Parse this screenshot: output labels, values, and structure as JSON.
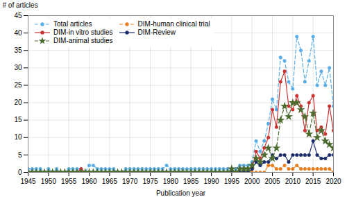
{
  "chart_data": {
    "type": "line",
    "xlabel": "Publication year",
    "ylabel": "# of articles",
    "x": [
      1945,
      1946,
      1947,
      1948,
      1949,
      1950,
      1951,
      1952,
      1953,
      1954,
      1955,
      1956,
      1957,
      1958,
      1959,
      1960,
      1961,
      1962,
      1963,
      1964,
      1965,
      1966,
      1967,
      1968,
      1969,
      1970,
      1971,
      1972,
      1973,
      1974,
      1975,
      1976,
      1977,
      1978,
      1979,
      1980,
      1981,
      1982,
      1983,
      1984,
      1985,
      1986,
      1987,
      1988,
      1989,
      1990,
      1991,
      1992,
      1993,
      1994,
      1995,
      1996,
      1997,
      1998,
      1999,
      2000,
      2001,
      2002,
      2003,
      2004,
      2005,
      2006,
      2007,
      2008,
      2009,
      2010,
      2011,
      2012,
      2013,
      2014,
      2015,
      2016,
      2017,
      2018,
      2019,
      2020
    ],
    "series": [
      {
        "name": "Total articles",
        "color": "#5BAEE8",
        "line_style": "dashed",
        "marker": "circle",
        "values": [
          1,
          1,
          1,
          1,
          0,
          1,
          0,
          1,
          0,
          0,
          1,
          1,
          1,
          1,
          0,
          2,
          2,
          1,
          1,
          1,
          1,
          1,
          0,
          0,
          1,
          1,
          1,
          1,
          1,
          1,
          1,
          1,
          1,
          1,
          2,
          1,
          1,
          1,
          1,
          1,
          1,
          1,
          1,
          1,
          1,
          1,
          1,
          1,
          1,
          1,
          1,
          1,
          2,
          2,
          2,
          3,
          9,
          6,
          9,
          14,
          21,
          18,
          33,
          32,
          26,
          24,
          39,
          35,
          26,
          32,
          39,
          25,
          29,
          25,
          30,
          19
        ]
      },
      {
        "name": "DIM-human clinical trial",
        "color": "#E88020",
        "line_style": "dashed",
        "marker": "circle",
        "values": [
          0,
          0,
          0,
          0,
          0,
          0,
          0,
          0,
          0,
          0,
          0,
          0,
          0,
          0,
          0,
          0,
          0,
          0,
          0,
          0,
          0,
          0,
          0,
          0,
          0,
          0,
          0,
          0,
          0,
          0,
          0,
          0,
          0,
          0,
          0,
          0,
          0,
          0,
          0,
          0,
          0,
          0,
          0,
          0,
          0,
          0,
          0,
          0,
          0,
          0,
          0,
          0,
          0,
          0,
          0,
          0,
          0,
          0,
          0,
          2,
          2,
          1,
          1,
          2,
          1,
          1,
          2,
          1,
          1,
          1,
          1,
          1,
          1,
          1,
          1,
          0
        ]
      },
      {
        "name": "DIM-in vitro studies",
        "color": "#CC3333",
        "line_style": "solid",
        "marker": "circle",
        "values": [
          0,
          0,
          0,
          0,
          0,
          0,
          0,
          0,
          0,
          0,
          0,
          0,
          0,
          1,
          0,
          0,
          0,
          0,
          0,
          0,
          0,
          0,
          0,
          0,
          0,
          0,
          0,
          0,
          0,
          0,
          0,
          0,
          0,
          0,
          0,
          0,
          0,
          0,
          0,
          0,
          0,
          0,
          0,
          0,
          0,
          0,
          0,
          0,
          0,
          0,
          0,
          0,
          1,
          1,
          1,
          1,
          6,
          4,
          7,
          10,
          18,
          13,
          26,
          29,
          19,
          18,
          22,
          19,
          12,
          20,
          22,
          12,
          13,
          11,
          19,
          12
        ]
      },
      {
        "name": "DIM-Review",
        "color": "#1B2D6B",
        "line_style": "solid",
        "marker": "circle",
        "values": [
          0,
          0,
          0,
          0,
          0,
          0,
          0,
          0,
          0,
          0,
          0,
          0,
          0,
          0,
          0,
          0,
          0,
          0,
          0,
          0,
          0,
          0,
          0,
          0,
          0,
          0,
          0,
          0,
          0,
          0,
          0,
          0,
          0,
          0,
          0,
          0,
          0,
          0,
          0,
          0,
          0,
          0,
          0,
          0,
          0,
          0,
          0,
          0,
          0,
          0,
          0,
          0,
          0,
          0,
          0,
          1,
          3,
          2,
          3,
          3,
          5,
          4,
          5,
          5,
          3,
          5,
          5,
          5,
          5,
          5,
          9,
          5,
          4,
          4,
          5,
          5
        ]
      },
      {
        "name": "DIM-animal studies",
        "color": "#4B6B2E",
        "line_style": "dashed",
        "marker": "star",
        "values": [
          0,
          0,
          0,
          0,
          0,
          0,
          0,
          0,
          0,
          0,
          0,
          0,
          0,
          0,
          0,
          0,
          0,
          0,
          0,
          0,
          0,
          0,
          0,
          0,
          0,
          0,
          0,
          0,
          0,
          0,
          0,
          0,
          0,
          0,
          0,
          0,
          0,
          0,
          0,
          0,
          0,
          0,
          0,
          0,
          0,
          0,
          0,
          0,
          0,
          0,
          1,
          0,
          1,
          1,
          1,
          2,
          4,
          3,
          5,
          7,
          4,
          7,
          15,
          19,
          16,
          20,
          20,
          18,
          16,
          11,
          17,
          10,
          12,
          9,
          8,
          7
        ]
      }
    ],
    "xlim": [
      1945,
      2020
    ],
    "ylim": [
      0,
      45
    ],
    "xticks": [
      1945,
      1950,
      1955,
      1960,
      1965,
      1970,
      1975,
      1980,
      1985,
      1990,
      1995,
      2000,
      2005,
      2010,
      2015,
      2020
    ],
    "yticks": [
      0,
      5,
      10,
      15,
      20,
      25,
      30,
      35,
      40,
      45
    ],
    "grid": true,
    "legend": "upper left"
  }
}
